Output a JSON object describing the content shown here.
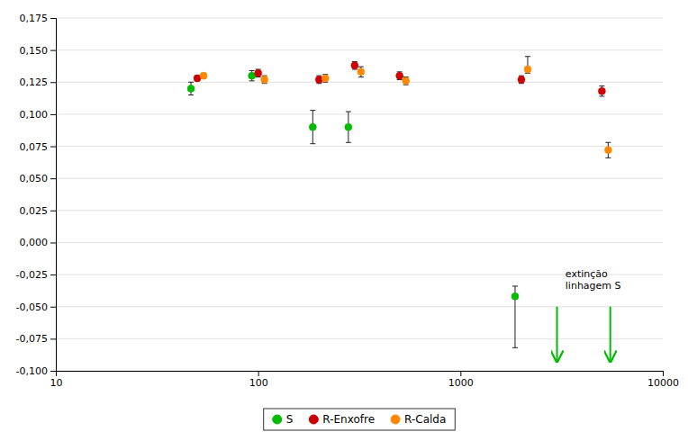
{
  "chart_data": {
    "type": "scatter",
    "log": "x",
    "grid": "y",
    "legend": "bottom",
    "xlim": [
      10,
      10000
    ],
    "xticks": [
      10,
      100,
      1000,
      10000
    ],
    "ylim": [
      -0.1,
      0.175
    ],
    "yticks": [
      {
        "value": -0.1,
        "label": "-0,100"
      },
      {
        "value": -0.075,
        "label": "-0,075"
      },
      {
        "value": -0.05,
        "label": "-0,050"
      },
      {
        "value": -0.025,
        "label": "-0,025"
      },
      {
        "value": 0.0,
        "label": "0,000"
      },
      {
        "value": 0.025,
        "label": "0,025"
      },
      {
        "value": 0.05,
        "label": "0,050"
      },
      {
        "value": 0.075,
        "label": "0,075"
      },
      {
        "value": 0.1,
        "label": "0,100"
      },
      {
        "value": 0.125,
        "label": "0,125"
      },
      {
        "value": 0.15,
        "label": "0,150"
      },
      {
        "value": 0.175,
        "label": "0,175"
      }
    ],
    "series": [
      {
        "name": "S",
        "color": "#00bb00",
        "marker": "circle",
        "x": [
          50,
          100,
          200,
          300,
          500,
          2000
        ],
        "values": [
          0.12,
          0.13,
          0.09,
          0.09,
          null,
          -0.042
        ],
        "yerr_lo": [
          0.005,
          0.004,
          0.013,
          0.012,
          null,
          0.04
        ],
        "yerr_hi": [
          0.005,
          0.004,
          0.013,
          0.012,
          null,
          0.008
        ],
        "arrows": {
          "x": [
            3000,
            5500
          ],
          "start": -0.05,
          "end": -0.093
        }
      },
      {
        "name": "R-Enxofre",
        "color": "#cc0000",
        "marker": "circle",
        "x": [
          50,
          100,
          200,
          300,
          500,
          2000,
          5000
        ],
        "values": [
          0.128,
          0.132,
          0.127,
          0.138,
          0.13,
          0.127,
          0.118
        ],
        "yerr_lo": [
          0.002,
          0.003,
          0.003,
          0.003,
          0.003,
          0.003,
          0.004
        ],
        "yerr_hi": [
          0.002,
          0.003,
          0.003,
          0.003,
          0.003,
          0.003,
          0.004
        ]
      },
      {
        "name": "R-Calda",
        "color": "#ff8800",
        "marker": "circle",
        "x": [
          50,
          100,
          200,
          300,
          500,
          2000,
          5000
        ],
        "values": [
          0.13,
          0.127,
          0.128,
          0.133,
          0.126,
          0.135,
          0.072
        ],
        "yerr_lo": [
          0.002,
          0.003,
          0.003,
          0.004,
          0.003,
          0.003,
          0.006
        ],
        "yerr_hi": [
          0.002,
          0.003,
          0.003,
          0.004,
          0.003,
          0.01,
          0.006
        ]
      }
    ],
    "annotations": [
      {
        "text": "extinção\nlinhagem S",
        "x": 3300,
        "y": -0.02
      }
    ]
  }
}
